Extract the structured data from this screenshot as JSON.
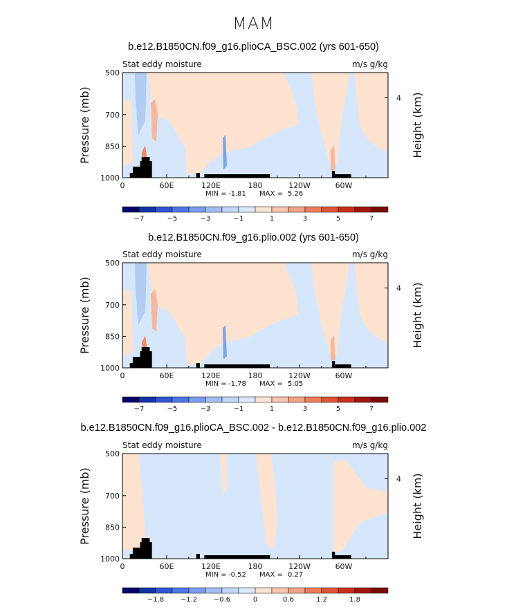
{
  "figure": {
    "main_title": "MAM"
  },
  "colors": {
    "land": "#000000",
    "positive_fill": "#fde2d0",
    "positive_mid": "#f6b79c",
    "positive_strong": "#ef8a6c",
    "negative_fill": "#d6e7fb",
    "negative_mid": "#b2ccf3",
    "negative_strong": "#7ea4e8"
  },
  "chart_data": [
    {
      "type": "heatmap",
      "title": "b.e12.B1850CN.f09_g16.plioCA_BSC.002 (yrs 601-650)",
      "left_label": "Stat eddy moisture",
      "right_label": "m/s g/kg",
      "ylabel": "Pressure (mb)",
      "ylabel_right": "Height (km)",
      "x_ticks": [
        "0",
        "60E",
        "120E",
        "180",
        "120W",
        "60W"
      ],
      "y_ticks": [
        "500",
        "700",
        "850",
        "1000"
      ],
      "y_right_ticks": [
        "4"
      ],
      "xlim": [
        0,
        360
      ],
      "ylim": [
        1000,
        500
      ],
      "stats": {
        "min_label": "MIN =",
        "min": "-1.81",
        "max_label": "MAX =",
        "max": "5.26"
      },
      "colorbar": {
        "tick_labels": [
          "-7",
          "-5",
          "-3",
          "-1",
          "1",
          "3",
          "5",
          "7"
        ],
        "levels": [
          -8,
          -7,
          -6,
          -5,
          -4,
          -3,
          -2,
          -1,
          0,
          1,
          2,
          3,
          4,
          5,
          6,
          7,
          8
        ],
        "colors": [
          "#08006b",
          "#1632a8",
          "#2f55d6",
          "#4f76e8",
          "#7b9cf0",
          "#a2bdf3",
          "#c2d6f7",
          "#dce9fb",
          "#fde4d4",
          "#f8c5ae",
          "#f3a486",
          "#ec7e5c",
          "#e05535",
          "#c9301c",
          "#a21510",
          "#7a0a0a"
        ]
      }
    },
    {
      "type": "heatmap",
      "title": "b.e12.B1850CN.f09_g16.plio.002 (yrs 601-650)",
      "left_label": "Stat eddy moisture",
      "right_label": "m/s g/kg",
      "ylabel": "Pressure (mb)",
      "ylabel_right": "Height (km)",
      "x_ticks": [
        "0",
        "60E",
        "120E",
        "180",
        "120W",
        "60W"
      ],
      "y_ticks": [
        "500",
        "700",
        "850",
        "1000"
      ],
      "y_right_ticks": [
        "4"
      ],
      "xlim": [
        0,
        360
      ],
      "ylim": [
        1000,
        500
      ],
      "stats": {
        "min_label": "MIN =",
        "min": "-1.78",
        "max_label": "MAX =",
        "max": "5.05"
      },
      "colorbar": {
        "tick_labels": [
          "-7",
          "-5",
          "-3",
          "-1",
          "1",
          "3",
          "5",
          "7"
        ],
        "levels": [
          -8,
          -7,
          -6,
          -5,
          -4,
          -3,
          -2,
          -1,
          0,
          1,
          2,
          3,
          4,
          5,
          6,
          7,
          8
        ],
        "colors": [
          "#08006b",
          "#1632a8",
          "#2f55d6",
          "#4f76e8",
          "#7b9cf0",
          "#a2bdf3",
          "#c2d6f7",
          "#dce9fb",
          "#fde4d4",
          "#f8c5ae",
          "#f3a486",
          "#ec7e5c",
          "#e05535",
          "#c9301c",
          "#a21510",
          "#7a0a0a"
        ]
      }
    },
    {
      "type": "heatmap",
      "title": "b.e12.B1850CN.f09_g16.plioCA_BSC.002 - b.e12.B1850CN.f09_g16.plio.002",
      "left_label": "Stat eddy moisture",
      "right_label": "m/s g/kg",
      "ylabel": "Pressure (mb)",
      "ylabel_right": "Height (km)",
      "x_ticks": [
        "0",
        "60E",
        "120E",
        "180",
        "120W",
        "60W"
      ],
      "y_ticks": [
        "500",
        "700",
        "850",
        "1000"
      ],
      "y_right_ticks": [
        "4"
      ],
      "xlim": [
        0,
        360
      ],
      "ylim": [
        1000,
        500
      ],
      "stats": {
        "min_label": "MIN =",
        "min": "-0.52",
        "max_label": "MAX =",
        "max": "0.27"
      },
      "colorbar": {
        "tick_labels": [
          "-1.8",
          "-1.2",
          "-0.6",
          "0",
          "0.6",
          "1.2",
          "1.8"
        ],
        "levels": [
          -2.4,
          -2.1,
          -1.8,
          -1.5,
          -1.2,
          -0.9,
          -0.6,
          -0.3,
          0,
          0.3,
          0.6,
          0.9,
          1.2,
          1.5,
          1.8,
          2.1,
          2.4
        ],
        "colors": [
          "#08006b",
          "#1632a8",
          "#2f55d6",
          "#4f76e8",
          "#7b9cf0",
          "#a2bdf3",
          "#c2d6f7",
          "#dce9fb",
          "#fde4d4",
          "#f8c5ae",
          "#f3a486",
          "#ec7e5c",
          "#e05535",
          "#c9301c",
          "#a21510",
          "#7a0a0a"
        ]
      }
    }
  ]
}
